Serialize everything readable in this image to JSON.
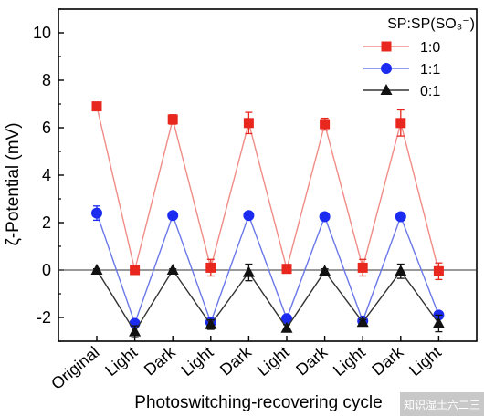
{
  "chart_data": {
    "type": "line",
    "xlabel": "Photoswitching-recovering cycle",
    "ylabel": "ζ-Potential (mV)",
    "categories": [
      "Original",
      "Light",
      "Dark",
      "Light",
      "Dark",
      "Light",
      "Dark",
      "Light",
      "Dark",
      "Light"
    ],
    "ylim": [
      -3,
      11
    ],
    "yticks": [
      -2,
      0,
      2,
      4,
      6,
      8,
      10
    ],
    "grid": false,
    "legend": {
      "title": "SP:SP(SO₃⁻)",
      "placement": "top-right"
    },
    "series": [
      {
        "name": "1:0",
        "color": "#e8281f",
        "line_color": "#f08c87",
        "marker": "square",
        "values": [
          6.9,
          0.0,
          6.35,
          0.1,
          6.2,
          0.05,
          6.15,
          0.1,
          6.2,
          -0.05
        ],
        "errors": [
          0.1,
          0.05,
          0.2,
          0.35,
          0.45,
          0.1,
          0.25,
          0.35,
          0.55,
          0.35
        ]
      },
      {
        "name": "1:1",
        "color": "#1b2bf0",
        "line_color": "#6b78e8",
        "marker": "circle",
        "values": [
          2.4,
          -2.25,
          2.3,
          -2.2,
          2.3,
          -2.05,
          2.25,
          -2.15,
          2.25,
          -1.9
        ],
        "errors": [
          0.3,
          0.1,
          0.1,
          0.15,
          0.05,
          0.1,
          0.05,
          0.1,
          0.05,
          0.15
        ]
      },
      {
        "name": "0:1",
        "color": "#111111",
        "line_color": "#333333",
        "marker": "triangle",
        "values": [
          0.0,
          -2.6,
          0.0,
          -2.3,
          -0.1,
          -2.45,
          -0.05,
          -2.2,
          -0.05,
          -2.25
        ],
        "errors": [
          0.05,
          0.25,
          0.05,
          0.2,
          0.35,
          0.15,
          0.1,
          0.1,
          0.3,
          0.35
        ]
      }
    ]
  },
  "watermark": "知识湿土六二三"
}
